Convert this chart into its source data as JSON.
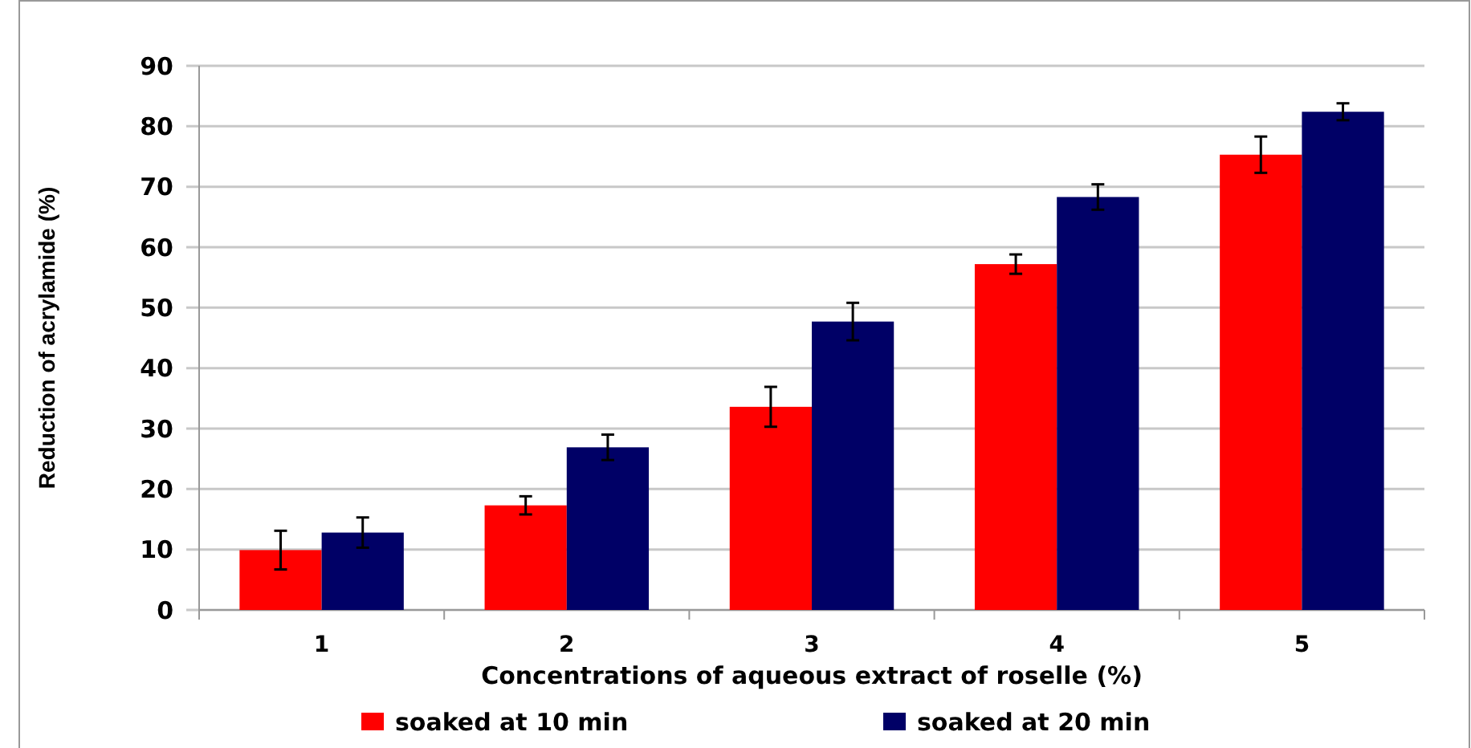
{
  "chart_data": {
    "type": "bar",
    "xlabel": "Concentrations of aqueous extract of roselle (%)",
    "ylabel": "Reduction of acrylamide (%)",
    "categories": [
      "1",
      "2",
      "3",
      "4",
      "5"
    ],
    "series": [
      {
        "name": "soaked at 10 min",
        "color": "#ff0000",
        "values": [
          9.9,
          17.3,
          33.6,
          57.2,
          75.3
        ],
        "errors": [
          3.2,
          1.5,
          3.3,
          1.6,
          3.0
        ]
      },
      {
        "name": "soaked at 20 min",
        "color": "#000066",
        "values": [
          12.8,
          26.9,
          47.7,
          68.3,
          82.4
        ],
        "errors": [
          2.5,
          2.1,
          3.1,
          2.1,
          1.4
        ]
      }
    ],
    "ylim": [
      0,
      90
    ],
    "yticks": [
      0,
      10,
      20,
      30,
      40,
      50,
      60,
      70,
      80,
      90
    ],
    "grid": "y",
    "legend": "bottom"
  }
}
